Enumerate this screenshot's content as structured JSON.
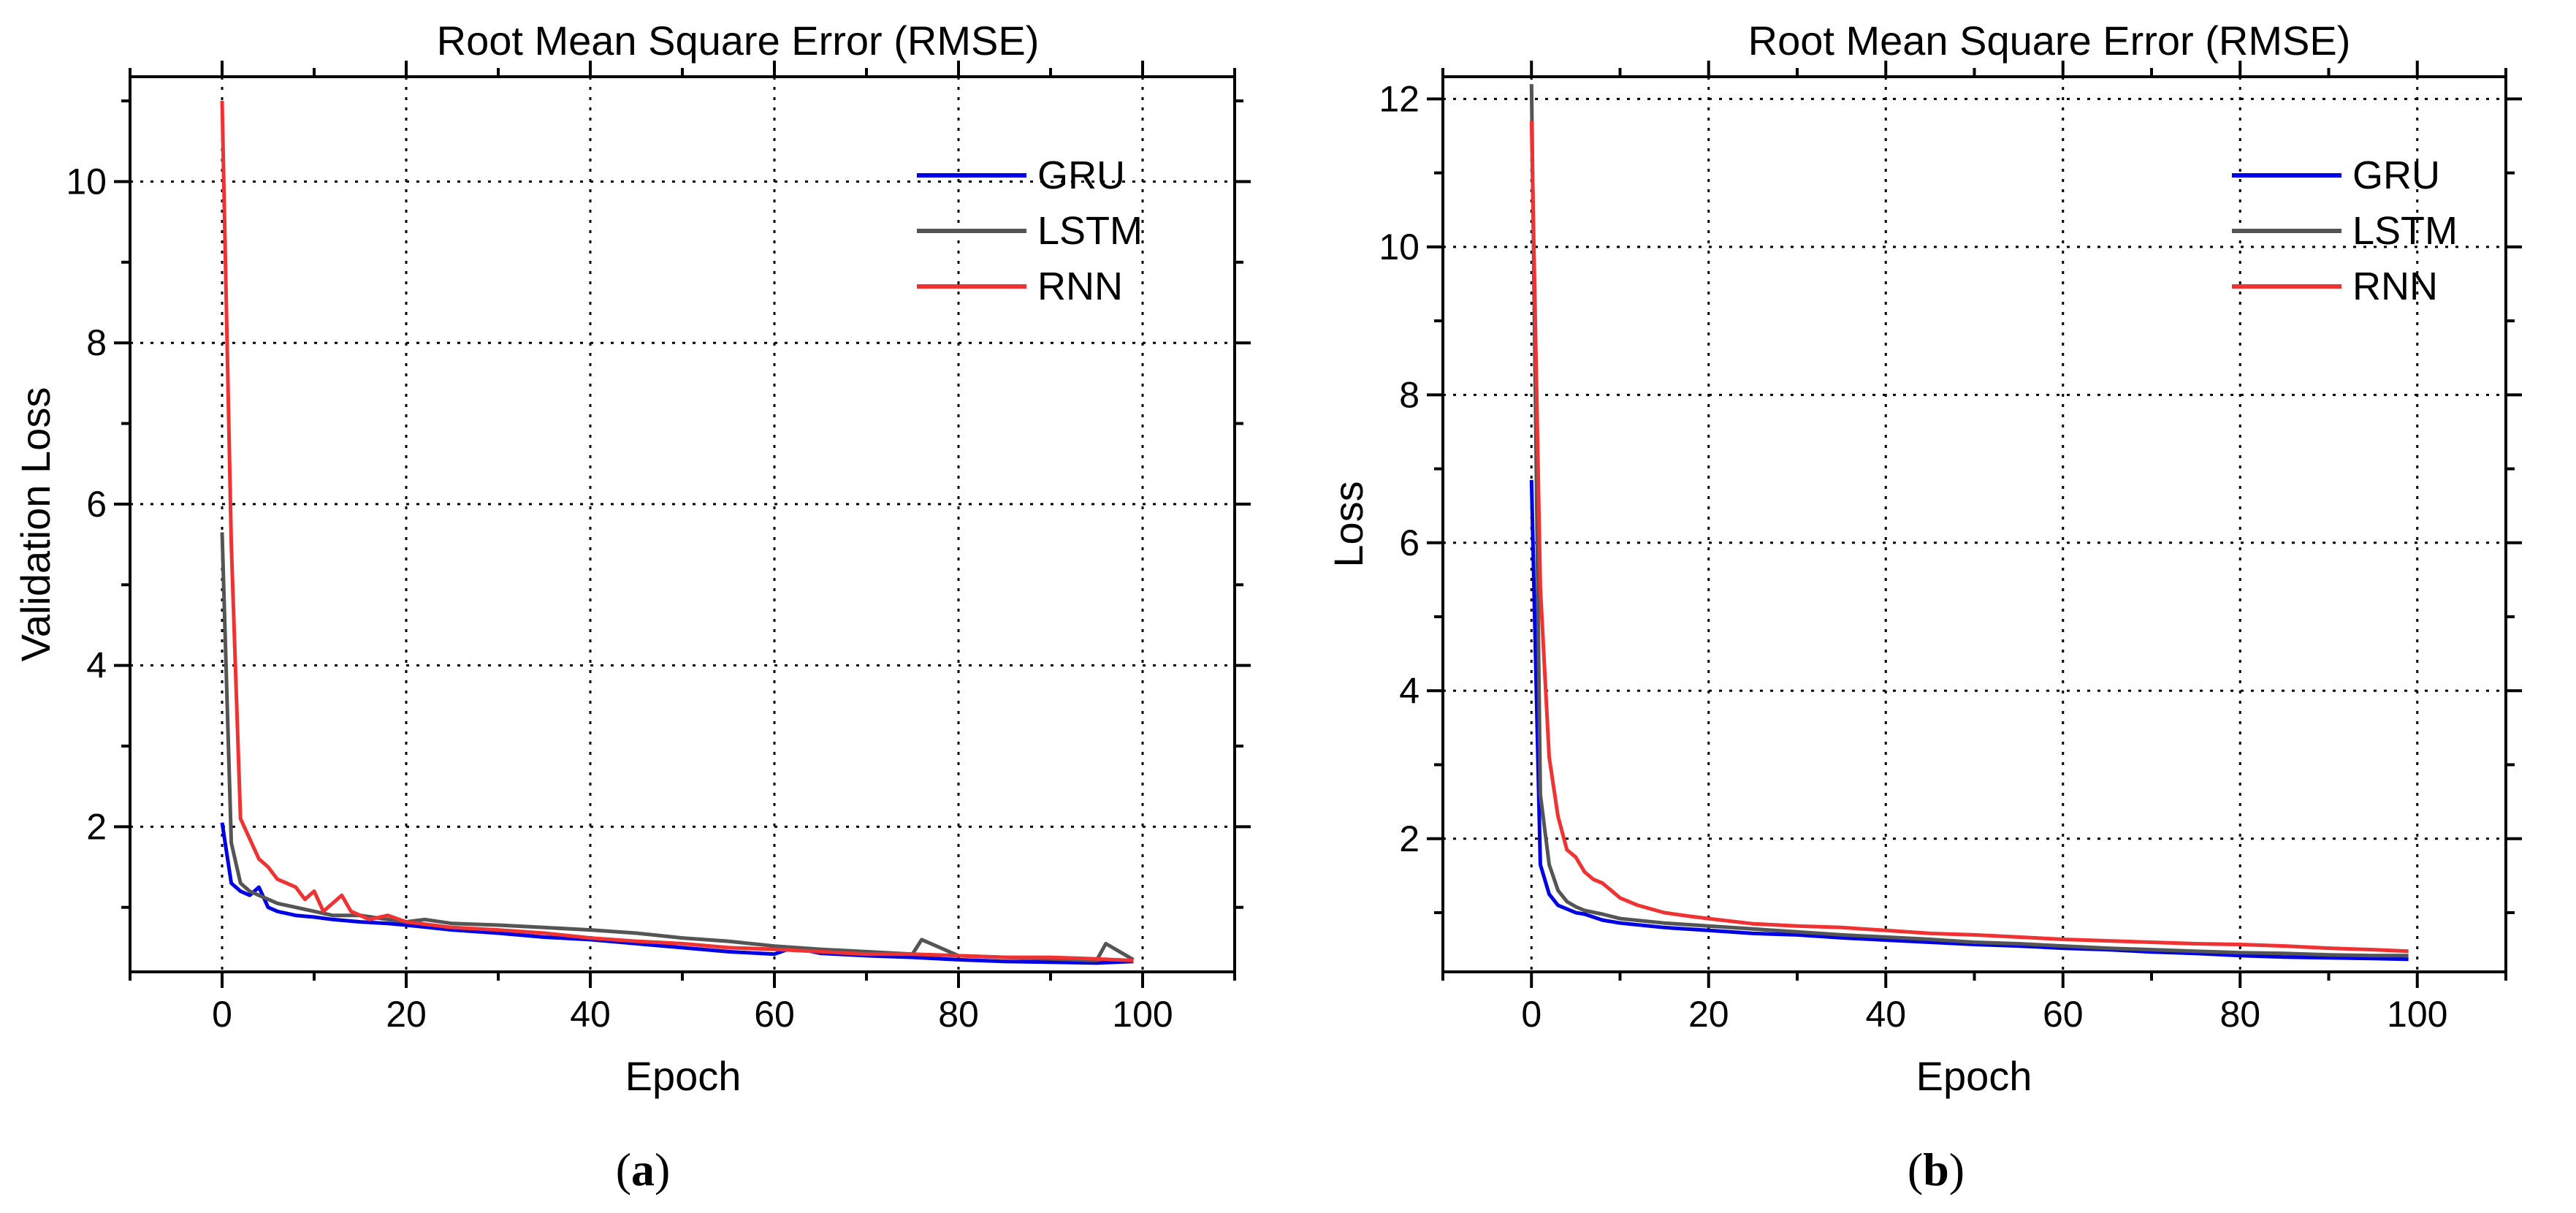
{
  "colors": {
    "GRU": "#0000e6",
    "LSTM": "#555555",
    "RNN": "#f03232",
    "axis": "#000000",
    "grid": "#000000"
  },
  "chart_data": [
    {
      "id": "a",
      "type": "line",
      "title": "Root Mean Square Error (RMSE)",
      "xlabel": "Epoch",
      "ylabel": "Validation Loss",
      "sublabel_open": "(",
      "sublabel_letter": "a",
      "sublabel_close": ")",
      "xlim": [
        -10,
        110
      ],
      "ylim": [
        0.2,
        11.3
      ],
      "xticks": [
        0,
        20,
        40,
        60,
        80,
        100
      ],
      "xtick_labels": [
        "0",
        "20",
        "40",
        "60",
        "80",
        "100"
      ],
      "yticks": [
        2,
        4,
        6,
        8,
        10
      ],
      "ytick_labels": [
        "2",
        "4",
        "6",
        "8",
        "10"
      ],
      "grid": true,
      "legend_position": "top-right",
      "series": [
        {
          "name": "GRU",
          "color_key": "GRU",
          "x": [
            0,
            1,
            2,
            3,
            4,
            5,
            6,
            8,
            10,
            12,
            15,
            18,
            20,
            25,
            30,
            35,
            40,
            45,
            50,
            55,
            60,
            62,
            65,
            70,
            75,
            80,
            85,
            90,
            95,
            99
          ],
          "y": [
            2.05,
            1.3,
            1.2,
            1.15,
            1.25,
            1.0,
            0.95,
            0.9,
            0.88,
            0.85,
            0.82,
            0.8,
            0.78,
            0.72,
            0.68,
            0.63,
            0.6,
            0.55,
            0.5,
            0.45,
            0.42,
            0.5,
            0.43,
            0.4,
            0.38,
            0.35,
            0.33,
            0.32,
            0.31,
            0.33
          ]
        },
        {
          "name": "LSTM",
          "color_key": "LSTM",
          "x": [
            0,
            1,
            2,
            3,
            4,
            5,
            6,
            8,
            10,
            12,
            15,
            18,
            20,
            22,
            25,
            30,
            35,
            40,
            45,
            50,
            55,
            60,
            65,
            70,
            75,
            76,
            80,
            85,
            90,
            95,
            96,
            99
          ],
          "y": [
            5.65,
            1.8,
            1.3,
            1.2,
            1.15,
            1.1,
            1.05,
            1.0,
            0.95,
            0.9,
            0.9,
            0.85,
            0.82,
            0.85,
            0.8,
            0.78,
            0.75,
            0.72,
            0.68,
            0.62,
            0.58,
            0.52,
            0.48,
            0.45,
            0.42,
            0.6,
            0.4,
            0.38,
            0.36,
            0.34,
            0.55,
            0.35
          ]
        },
        {
          "name": "RNN",
          "color_key": "RNN",
          "x": [
            0,
            1,
            2,
            3,
            4,
            5,
            6,
            7,
            8,
            9,
            10,
            11,
            12,
            13,
            14,
            15,
            16,
            18,
            20,
            25,
            30,
            35,
            40,
            45,
            50,
            55,
            60,
            65,
            70,
            75,
            80,
            85,
            90,
            95,
            99
          ],
          "y": [
            11.0,
            5.5,
            2.1,
            1.85,
            1.6,
            1.5,
            1.35,
            1.3,
            1.25,
            1.1,
            1.2,
            0.95,
            1.05,
            1.15,
            0.95,
            0.9,
            0.85,
            0.9,
            0.82,
            0.75,
            0.72,
            0.68,
            0.62,
            0.58,
            0.55,
            0.5,
            0.48,
            0.45,
            0.42,
            0.42,
            0.4,
            0.38,
            0.38,
            0.36,
            0.34
          ]
        }
      ]
    },
    {
      "id": "b",
      "type": "line",
      "title": "Root Mean Square Error (RMSE)",
      "xlabel": "Epoch",
      "ylabel": "Loss",
      "sublabel_open": "(",
      "sublabel_letter": "b",
      "sublabel_close": ")",
      "xlim": [
        -10,
        110
      ],
      "ylim": [
        0.2,
        12.3
      ],
      "xticks": [
        0,
        20,
        40,
        60,
        80,
        100
      ],
      "xtick_labels": [
        "0",
        "20",
        "40",
        "60",
        "80",
        "100"
      ],
      "yticks": [
        2,
        4,
        6,
        8,
        10,
        12
      ],
      "ytick_labels": [
        "2",
        "4",
        "6",
        "8",
        "10",
        "12"
      ],
      "grid": true,
      "legend_position": "top-right",
      "series": [
        {
          "name": "GRU",
          "color_key": "GRU",
          "x": [
            0,
            1,
            2,
            3,
            4,
            5,
            6,
            8,
            10,
            15,
            20,
            25,
            30,
            35,
            40,
            45,
            50,
            55,
            60,
            65,
            70,
            75,
            80,
            85,
            90,
            95,
            99
          ],
          "y": [
            6.85,
            1.65,
            1.25,
            1.1,
            1.05,
            1.0,
            0.98,
            0.9,
            0.86,
            0.8,
            0.76,
            0.72,
            0.7,
            0.66,
            0.63,
            0.6,
            0.57,
            0.55,
            0.52,
            0.5,
            0.47,
            0.45,
            0.42,
            0.4,
            0.39,
            0.38,
            0.37
          ]
        },
        {
          "name": "LSTM",
          "color_key": "LSTM",
          "x": [
            0,
            1,
            2,
            3,
            4,
            5,
            6,
            8,
            10,
            15,
            20,
            25,
            30,
            35,
            40,
            45,
            50,
            55,
            60,
            65,
            70,
            75,
            80,
            85,
            90,
            95,
            99
          ],
          "y": [
            12.2,
            2.6,
            1.65,
            1.3,
            1.15,
            1.08,
            1.03,
            0.98,
            0.92,
            0.86,
            0.82,
            0.78,
            0.74,
            0.7,
            0.67,
            0.64,
            0.6,
            0.58,
            0.55,
            0.52,
            0.5,
            0.48,
            0.46,
            0.45,
            0.43,
            0.42,
            0.42
          ]
        },
        {
          "name": "RNN",
          "color_key": "RNN",
          "x": [
            0,
            1,
            2,
            3,
            4,
            5,
            6,
            7,
            8,
            9,
            10,
            12,
            15,
            18,
            20,
            25,
            30,
            35,
            40,
            45,
            50,
            55,
            60,
            65,
            70,
            75,
            80,
            85,
            90,
            95,
            99
          ],
          "y": [
            11.7,
            5.4,
            3.1,
            2.3,
            1.85,
            1.75,
            1.55,
            1.45,
            1.4,
            1.3,
            1.2,
            1.1,
            1.0,
            0.95,
            0.92,
            0.85,
            0.82,
            0.8,
            0.76,
            0.72,
            0.7,
            0.67,
            0.64,
            0.62,
            0.6,
            0.58,
            0.57,
            0.55,
            0.52,
            0.5,
            0.48
          ]
        }
      ]
    }
  ]
}
